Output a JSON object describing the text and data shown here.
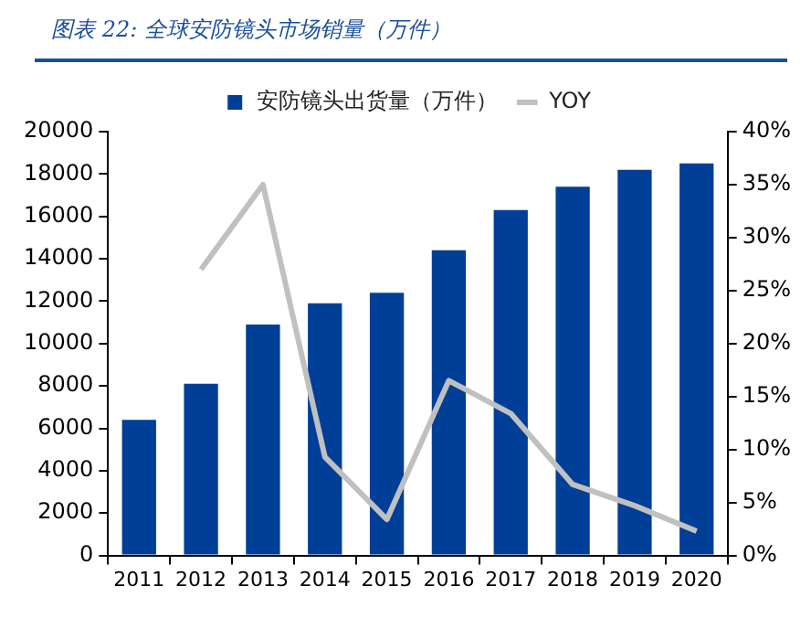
{
  "chart_data": {
    "type": "bar",
    "title": "图表 22: 全球安防镜头市场销量（万件）",
    "categories": [
      "2011",
      "2012",
      "2013",
      "2014",
      "2015",
      "2016",
      "2017",
      "2018",
      "2019",
      "2020"
    ],
    "series": [
      {
        "name": "安防镜头出货量（万件）",
        "color": "#003f98",
        "values": [
          6400,
          8100,
          10900,
          11900,
          12400,
          14400,
          16300,
          17400,
          18200,
          18500
        ]
      },
      {
        "name": "YOY",
        "type": "line",
        "axis": "y2",
        "color": "#c0c0c0",
        "values": [
          null,
          27,
          35,
          9.3,
          3.4,
          16.5,
          13.4,
          6.7,
          4.7,
          2.3
        ]
      }
    ],
    "ylim": [
      0,
      20000
    ],
    "yticks": [
      0,
      2000,
      4000,
      6000,
      8000,
      10000,
      12000,
      14000,
      16000,
      18000,
      20000
    ],
    "y2lim": [
      0,
      40
    ],
    "y2ticks": [
      {
        "value": 0,
        "label": "0%"
      },
      {
        "value": 5,
        "label": "5%"
      },
      {
        "value": 10,
        "label": "10%"
      },
      {
        "value": 15,
        "label": "15%"
      },
      {
        "value": 20,
        "label": "20%"
      },
      {
        "value": 25,
        "label": "25%"
      },
      {
        "value": 30,
        "label": "30%"
      },
      {
        "value": 35,
        "label": "35%"
      },
      {
        "value": 40,
        "label": "40%"
      }
    ],
    "grid": false,
    "legend": "top",
    "marker": "none"
  }
}
